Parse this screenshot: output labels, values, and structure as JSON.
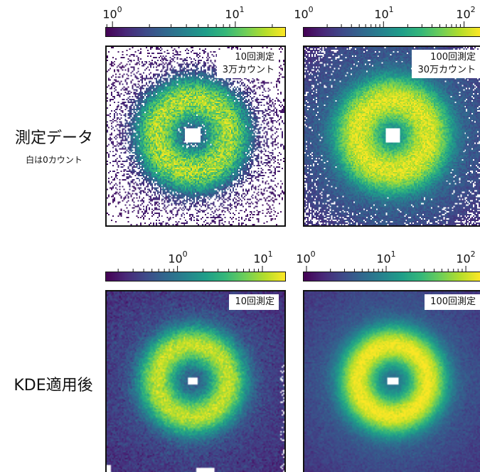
{
  "rows": {
    "measured": {
      "title": "測定データ",
      "subtitle": "白は0カウント"
    },
    "kde": {
      "title": "KDE適用後"
    }
  },
  "panels": [
    {
      "id": "p1",
      "annotation": [
        "10回測定",
        "3万カウント"
      ],
      "colorbar_ticks": [
        "10^0",
        "10^1"
      ],
      "log_max": 1.5,
      "kind": "raw_sparse"
    },
    {
      "id": "p2",
      "annotation": [
        "100回測定",
        "30万カウント"
      ],
      "colorbar_ticks": [
        "10^0",
        "10^1",
        "10^2"
      ],
      "log_max": 2.3,
      "kind": "raw_dense"
    },
    {
      "id": "p3",
      "annotation": [
        "10回測定"
      ],
      "colorbar_ticks": [
        "10^0",
        "10^1"
      ],
      "log_max": 1.4,
      "kind": "kde_sparse"
    },
    {
      "id": "p4",
      "annotation": [
        "100回測定"
      ],
      "colorbar_ticks": [
        "10^0",
        "10^1",
        "10^2"
      ],
      "log_max": 2.3,
      "kind": "kde_dense"
    }
  ],
  "chart_data": {
    "type": "heatmap",
    "description": "2D histograms of a ring-shaped distribution (center blank), log color scale (viridis).",
    "colormap": "viridis",
    "scale": "log",
    "colors": {
      "viridis_low": "#440154",
      "viridis_mid": "#21918c",
      "viridis_high": "#fde725",
      "zero": "#ffffff"
    }
  }
}
